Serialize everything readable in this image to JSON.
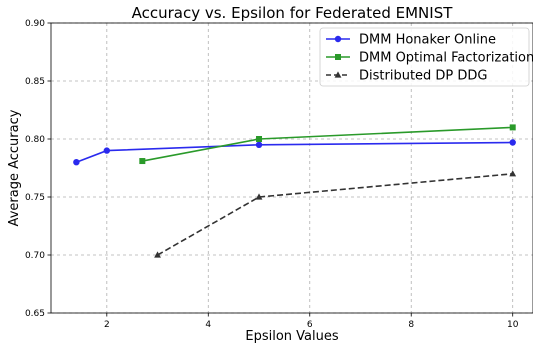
{
  "chart_data": {
    "type": "line",
    "title": "Accuracy vs. Epsilon for Federated EMNIST",
    "xlabel": "Epsilon Values",
    "ylabel": "Average Accuracy",
    "xlim": [
      0.9,
      10.4
    ],
    "ylim": [
      0.65,
      0.9
    ],
    "xticks": [
      2,
      4,
      6,
      8,
      10
    ],
    "yticks": [
      0.65,
      0.7,
      0.75,
      0.8,
      0.85,
      0.9
    ],
    "xtick_labels": [
      "2",
      "4",
      "6",
      "8",
      "10"
    ],
    "ytick_labels": [
      "0.65",
      "0.70",
      "0.75",
      "0.80",
      "0.85",
      "0.90"
    ],
    "grid": true,
    "legend_position": "top-right",
    "series": [
      {
        "name": "DMM Honaker Online",
        "color": "#2a2aee",
        "marker": "circle",
        "dash": "solid",
        "x": [
          1.4,
          2,
          5,
          10
        ],
        "y": [
          0.78,
          0.79,
          0.795,
          0.797
        ]
      },
      {
        "name": "DMM Optimal Factorization",
        "color": "#2a9a2a",
        "marker": "square",
        "dash": "solid",
        "x": [
          2.7,
          5,
          10
        ],
        "y": [
          0.781,
          0.8,
          0.81
        ]
      },
      {
        "name": "Distributed DP DDG",
        "color": "#333333",
        "marker": "triangle",
        "dash": "dashed",
        "x": [
          3,
          5,
          10
        ],
        "y": [
          0.7,
          0.75,
          0.77
        ]
      }
    ]
  }
}
